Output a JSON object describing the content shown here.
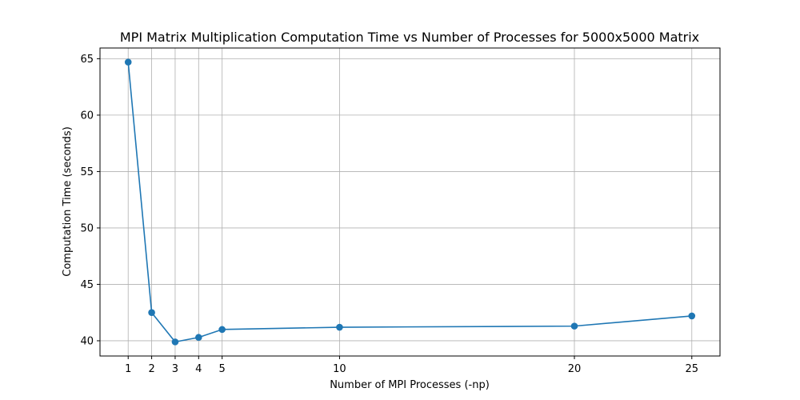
{
  "chart_data": {
    "type": "line",
    "title": "MPI Matrix Multiplication Computation Time vs Number of Processes for 5000x5000 Matrix",
    "xlabel": "Number of MPI Processes (-np)",
    "ylabel": "Computation Time (seconds)",
    "x": [
      1,
      2,
      3,
      4,
      5,
      10,
      20,
      25
    ],
    "x_tick_labels": [
      "1",
      "2",
      "3",
      "4",
      "5",
      "10",
      "20",
      "25"
    ],
    "y_ticks": [
      40,
      45,
      50,
      55,
      60,
      65
    ],
    "y_tick_labels": [
      "40",
      "45",
      "50",
      "55",
      "60",
      "65"
    ],
    "series": [
      {
        "values": [
          64.7,
          42.5,
          39.9,
          40.3,
          41.0,
          41.2,
          41.3,
          42.2
        ]
      }
    ],
    "xlim": [
      -0.2,
      26.2
    ],
    "ylim": [
      38.65,
      65.95
    ],
    "grid": true,
    "marker": "circle",
    "colors": {
      "line": "#1f77b4",
      "grid": "#b0b0b0",
      "axis": "#000000"
    }
  }
}
